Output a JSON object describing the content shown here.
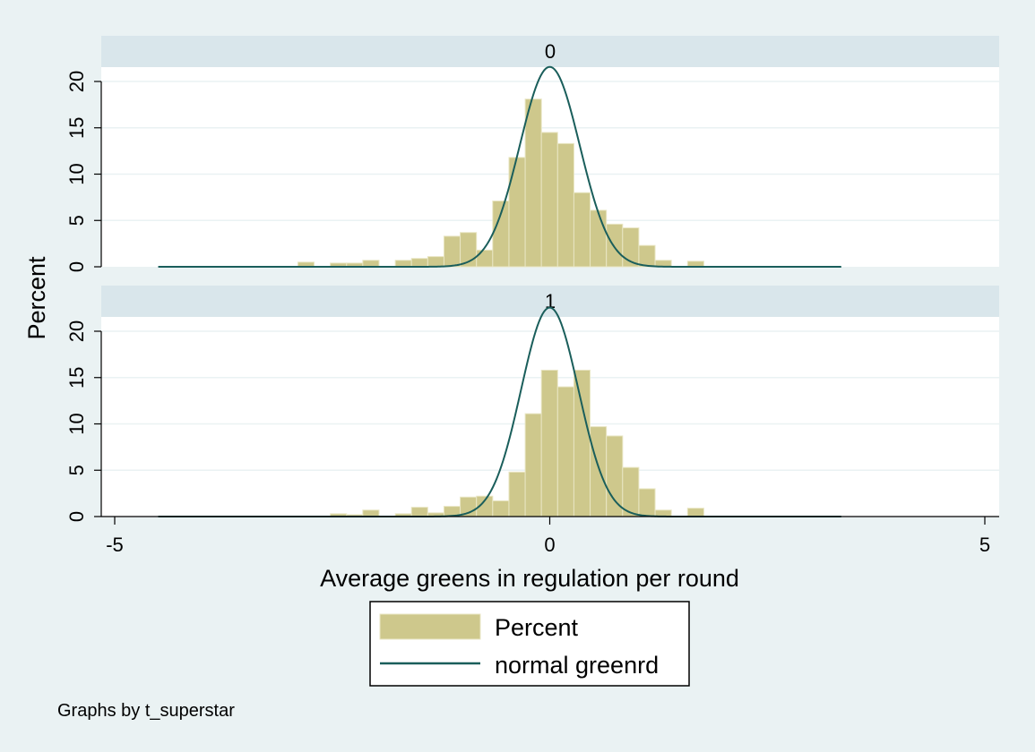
{
  "chart_data": {
    "type": "bar",
    "subtype": "histogram-with-normal-overlay",
    "xlabel": "Average greens in regulation per round",
    "ylabel": "Percent",
    "xlim": [
      -5,
      5
    ],
    "ylim": [
      0,
      22
    ],
    "xticks": [
      -5,
      0,
      5
    ],
    "yticks": [
      0,
      5,
      10,
      15,
      20
    ],
    "grid": true,
    "bin_width": 0.1866,
    "legend": {
      "position": "bottom",
      "entries": [
        "Percent",
        "normal greenrd"
      ]
    },
    "note": "Graphs by t_superstar",
    "colors": {
      "bar_fill": "#cec88c",
      "bar_edge": "#e9e6c4",
      "curve": "#1a5e5b",
      "strip": "#d9e6eb",
      "background": "#eaf2f3",
      "plot": "#ffffff",
      "grid": "#eaf2f3"
    },
    "panels": [
      {
        "label": "0",
        "bin_left": [
          -2.895,
          -2.522,
          -2.335,
          -2.149,
          -1.775,
          -1.589,
          -1.402,
          -1.216,
          -1.029,
          -0.842,
          -0.656,
          -0.469,
          -0.282,
          -0.096,
          0.091,
          0.277,
          0.464,
          0.651,
          0.837,
          1.024,
          1.211,
          1.584
        ],
        "values": [
          0.5,
          0.4,
          0.4,
          0.7,
          0.7,
          0.9,
          1.1,
          3.3,
          3.7,
          1.8,
          7.1,
          11.8,
          18.1,
          14.5,
          13.3,
          8.0,
          6.1,
          4.6,
          4.2,
          2.3,
          0.7,
          0.6
        ],
        "normal": {
          "mean": 0.0,
          "sd": 0.345
        },
        "curve_range": [
          -4.5,
          3.35
        ]
      },
      {
        "label": "1",
        "bin_left": [
          -2.522,
          -2.335,
          -2.149,
          -1.775,
          -1.589,
          -1.402,
          -1.216,
          -1.029,
          -0.842,
          -0.656,
          -0.469,
          -0.282,
          -0.096,
          0.091,
          0.277,
          0.464,
          0.651,
          0.837,
          1.024,
          1.211,
          1.584
        ],
        "values": [
          0.3,
          0.2,
          0.7,
          0.3,
          1.0,
          0.4,
          1.1,
          2.1,
          2.2,
          1.7,
          4.8,
          11.1,
          15.8,
          14.0,
          15.8,
          9.7,
          8.7,
          5.3,
          3.0,
          0.7,
          0.9
        ],
        "normal": {
          "mean": 0.0,
          "sd": 0.33
        },
        "curve_range": [
          -4.5,
          3.35
        ]
      }
    ]
  }
}
